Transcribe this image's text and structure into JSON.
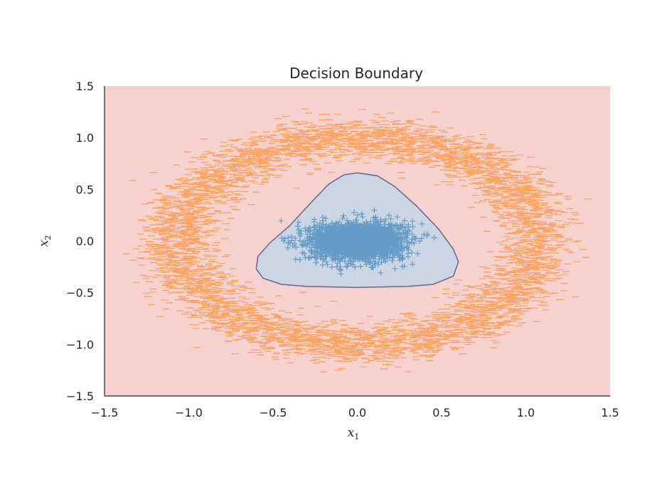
{
  "chart_data": {
    "type": "scatter",
    "title": "Decision Boundary",
    "xlabel": "x",
    "xlabel_sub": "1",
    "ylabel": "x",
    "ylabel_sub": "2",
    "xlim": [
      -1.5,
      1.5
    ],
    "ylim": [
      -1.5,
      1.5
    ],
    "xticks": [
      -1.5,
      -1.0,
      -0.5,
      0.0,
      0.5,
      1.0,
      1.5
    ],
    "yticks": [
      -1.5,
      -1.0,
      -0.5,
      0.0,
      0.5,
      1.0,
      1.5
    ],
    "xtick_labels": [
      "−1.5",
      "−1.0",
      "−0.5",
      "0.0",
      "0.5",
      "1.0",
      "1.5"
    ],
    "ytick_labels": [
      "−1.5",
      "−1.0",
      "−0.5",
      "0.0",
      "0.5",
      "1.0",
      "1.5"
    ],
    "grid": false,
    "background_region": {
      "label_class": "outer",
      "color": "#f6d2cf"
    },
    "decision_region": {
      "color": "#ccd5e4",
      "edge_color": "#6b6390",
      "boundary": [
        [
          0.0,
          0.66
        ],
        [
          0.12,
          0.63
        ],
        [
          0.22,
          0.53
        ],
        [
          0.35,
          0.34
        ],
        [
          0.48,
          0.12
        ],
        [
          0.57,
          -0.08
        ],
        [
          0.6,
          -0.2
        ],
        [
          0.57,
          -0.34
        ],
        [
          0.45,
          -0.42
        ],
        [
          0.3,
          -0.44
        ],
        [
          0.0,
          -0.45
        ],
        [
          -0.3,
          -0.44
        ],
        [
          -0.45,
          -0.42
        ],
        [
          -0.56,
          -0.36
        ],
        [
          -0.6,
          -0.27
        ],
        [
          -0.59,
          -0.15
        ],
        [
          -0.52,
          -0.02
        ],
        [
          -0.4,
          0.15
        ],
        [
          -0.27,
          0.38
        ],
        [
          -0.17,
          0.55
        ],
        [
          -0.08,
          0.64
        ],
        [
          0.0,
          0.66
        ]
      ]
    },
    "series": [
      {
        "class": "inner",
        "marker": "+",
        "color": "#1f77b4",
        "distribution": {
          "center": [
            0.0,
            0.0
          ],
          "spread_x": 0.14,
          "spread_y": 0.09,
          "count": 2200
        }
      },
      {
        "class": "ring",
        "marker": "_",
        "color": "#ff7f0e",
        "distribution": {
          "center": [
            0.0,
            0.0
          ],
          "radius": 1.0,
          "radius_x": 1.07,
          "radius_y": 1.0,
          "spread": 0.1,
          "count": 5200
        }
      }
    ]
  },
  "colors": {
    "axis": "#262626",
    "inner": "#1f77b4",
    "ring": "#ff7f0e"
  }
}
